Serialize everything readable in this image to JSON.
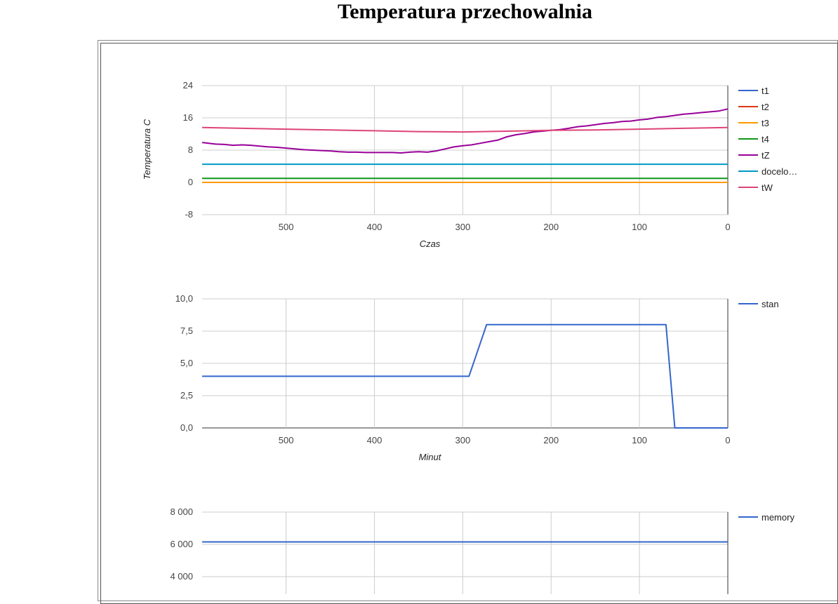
{
  "page": {
    "title": "Temperatura przechowalnia"
  },
  "chart_data": [
    {
      "type": "line",
      "title": "",
      "xlabel": "Czas",
      "ylabel": "Temperatura C",
      "x_reversed": true,
      "xlim": [
        595,
        0
      ],
      "ylim": [
        -8,
        24
      ],
      "xticks": [
        "500",
        "400",
        "300",
        "200",
        "100",
        "0"
      ],
      "yticks": [
        "24",
        "16",
        "8",
        "0",
        "-8"
      ],
      "legend_position": "right",
      "grid": true,
      "series": [
        {
          "name": "t1",
          "color": "#3366cc",
          "x": [
            595,
            0
          ],
          "y": [
            0,
            0
          ]
        },
        {
          "name": "t2",
          "color": "#dc3912",
          "x": [
            595,
            0
          ],
          "y": [
            0,
            0
          ]
        },
        {
          "name": "t3",
          "color": "#ff9900",
          "x": [
            595,
            0
          ],
          "y": [
            0,
            0
          ]
        },
        {
          "name": "t4",
          "color": "#109618",
          "x": [
            595,
            0
          ],
          "y": [
            1,
            1
          ]
        },
        {
          "name": "tZ",
          "color": "#990099",
          "x": [
            595,
            580,
            570,
            560,
            550,
            540,
            530,
            520,
            510,
            500,
            490,
            480,
            470,
            460,
            450,
            440,
            430,
            420,
            410,
            400,
            390,
            380,
            370,
            360,
            350,
            340,
            330,
            320,
            310,
            300,
            290,
            280,
            270,
            260,
            250,
            240,
            230,
            220,
            210,
            200,
            190,
            180,
            170,
            160,
            150,
            140,
            130,
            120,
            110,
            100,
            90,
            80,
            70,
            60,
            50,
            40,
            30,
            20,
            10,
            0
          ],
          "y": [
            9.9,
            9.5,
            9.4,
            9.2,
            9.3,
            9.2,
            9.0,
            8.8,
            8.7,
            8.5,
            8.3,
            8.1,
            8.0,
            7.9,
            7.8,
            7.6,
            7.5,
            7.5,
            7.4,
            7.4,
            7.4,
            7.4,
            7.3,
            7.5,
            7.6,
            7.5,
            7.8,
            8.3,
            8.8,
            9.1,
            9.3,
            9.7,
            10.1,
            10.5,
            11.3,
            11.8,
            12.1,
            12.5,
            12.7,
            12.9,
            13.1,
            13.4,
            13.8,
            14.0,
            14.3,
            14.6,
            14.8,
            15.1,
            15.2,
            15.5,
            15.7,
            16.1,
            16.3,
            16.6,
            16.9,
            17.1,
            17.3,
            17.5,
            17.7,
            18.2
          ]
        },
        {
          "name": "docelo…",
          "color": "#0099c6",
          "x": [
            595,
            0
          ],
          "y": [
            4.5,
            4.5
          ]
        },
        {
          "name": "tW",
          "color": "#dd4477",
          "x": [
            595,
            550,
            500,
            450,
            400,
            350,
            300,
            250,
            200,
            150,
            100,
            50,
            0
          ],
          "y": [
            13.6,
            13.4,
            13.2,
            13.0,
            12.8,
            12.6,
            12.5,
            12.7,
            12.9,
            13.0,
            13.2,
            13.4,
            13.6
          ]
        }
      ]
    },
    {
      "type": "line",
      "title": "",
      "xlabel": "Minut",
      "ylabel": "",
      "x_reversed": true,
      "xlim": [
        595,
        0
      ],
      "ylim": [
        0,
        10
      ],
      "xticks": [
        "500",
        "400",
        "300",
        "200",
        "100",
        "0"
      ],
      "yticks": [
        "10,0",
        "7,5",
        "5,0",
        "2,5",
        "0,0"
      ],
      "legend_position": "right",
      "grid": true,
      "series": [
        {
          "name": "stan",
          "color": "#3366cc",
          "x": [
            595,
            293,
            273,
            70,
            60,
            0
          ],
          "y": [
            4,
            4,
            8,
            8,
            0,
            0
          ]
        }
      ]
    },
    {
      "type": "line",
      "title": "",
      "xlabel": "",
      "ylabel": "",
      "x_reversed": true,
      "xlim": [
        595,
        0
      ],
      "ylim": [
        0,
        8000
      ],
      "yticks": [
        "8 000",
        "6 000",
        "4 000"
      ],
      "legend_position": "right",
      "grid": true,
      "series": [
        {
          "name": "memory",
          "color": "#3366cc",
          "x": [
            595,
            0
          ],
          "y": [
            6150,
            6150
          ]
        }
      ]
    }
  ]
}
